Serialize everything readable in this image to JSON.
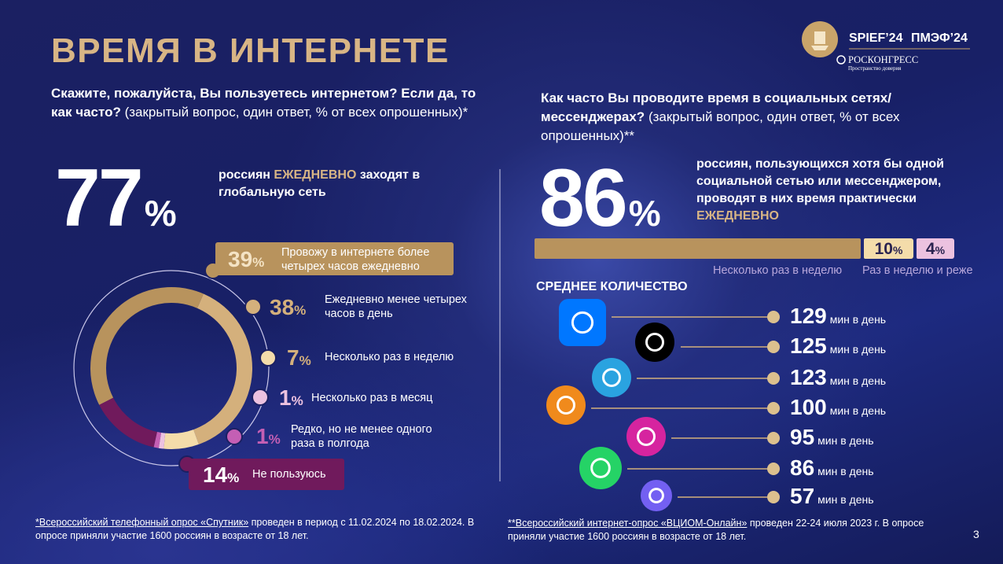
{
  "header": {
    "title": "ВРЕМЯ В ИНТЕРНЕТЕ",
    "logo_spief": "SPIEF’24",
    "logo_pmef": "ПМЭФ’24",
    "logo_roscongress": "РОСКОНГРЕСС",
    "logo_tagline": "Пространство доверия"
  },
  "left": {
    "question_bold": "Скажите, пожалуйста, Вы пользуетесь интернетом? Если да, то как часто?",
    "question_note": "(закрытый вопрос, один ответ, % от всех опрошенных)*",
    "unit": "%",
    "headline_value": 77,
    "headline_text_1": "россиян",
    "headline_highlight": "ЕЖЕДНЕВНО",
    "headline_text_2": "заходят в глобальную сеть",
    "donut": {
      "type": "pie",
      "segments": [
        {
          "value": 39,
          "label": "Провожу в интернете более четырех часов ежедневно",
          "color": "#b8935d"
        },
        {
          "value": 38,
          "label": "Ежедневно менее четырех часов в день",
          "color": "#d4b07c"
        },
        {
          "value": 7,
          "label": "Несколько раз в неделю",
          "color": "#f4dcaa"
        },
        {
          "value": 1,
          "label": "Несколько раз в месяц",
          "color": "#ecc2e0"
        },
        {
          "value": 1,
          "label": "Редко, но не менее одного раза в полгода",
          "color": "#c45fb4"
        },
        {
          "value": 14,
          "label": "Не пользуюсь",
          "color": "#701a5c"
        }
      ]
    },
    "footnote_link": "*Всероссийский телефонный опрос «Спутник»",
    "footnote_text": "проведен в период с 11.02.2024 по 18.02.2024. В опросе приняли участие 1600 россиян в возрасте от 18 лет."
  },
  "right": {
    "question_bold": "Как часто Вы проводите время в социальных сетях/мессенджерах?",
    "question_note": "(закрытый вопрос, один ответ, % от всех опрошенных)**",
    "unit": "%",
    "headline_value": 86,
    "headline_text": "россиян, пользующихся хотя бы одной социальной сетью или мессенджером, проводят в них время практически",
    "headline_highlight": "ЕЖЕДНЕВНО",
    "bar": {
      "type": "bar",
      "segments": [
        {
          "value": 86,
          "color": "#b8935d"
        },
        {
          "value": 10,
          "label": "Несколько раз в неделю",
          "color": "#f4dcaa"
        },
        {
          "value": 4,
          "label": "Раз в неделю и реже",
          "color": "#ecc2e0"
        }
      ]
    },
    "average_title": "СРЕДНЕЕ КОЛИЧЕСТВО",
    "minutes_unit": "мин в день",
    "networks": [
      129,
      125,
      123,
      100,
      95,
      86,
      57
    ],
    "footnote_link": "**Всероссийский интернет-опрос «ВЦИОМ-Онлайн»",
    "footnote_text": "проведен 22-24 июля 2023 г. В опросе приняли участие 1600 россиян в возрасте от 18 лет."
  },
  "page_number": "3"
}
